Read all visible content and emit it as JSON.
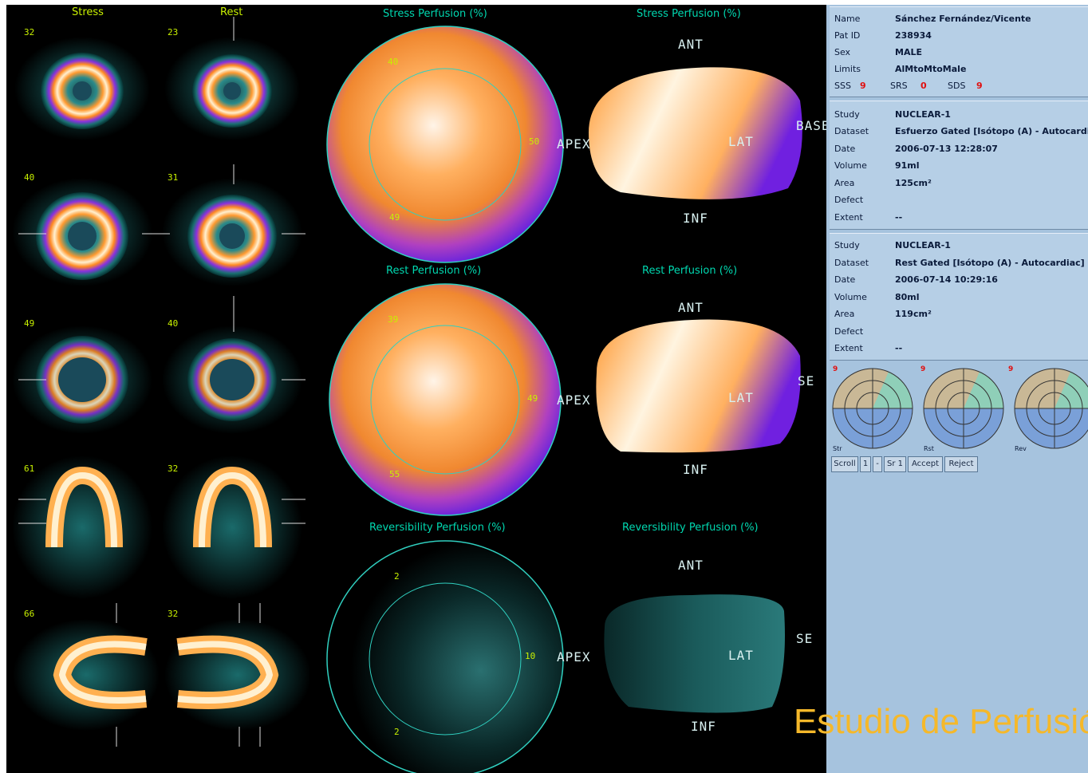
{
  "slices": {
    "stress_label": "Stress",
    "rest_label": "Rest",
    "stress_numbers": [
      "32",
      "40",
      "49",
      "61",
      "66"
    ],
    "rest_numbers": [
      "23",
      "31",
      "40",
      "32",
      "32"
    ]
  },
  "plots": {
    "stress_polar_title": "Stress Perfusion (%)",
    "stress_surface_title": "Stress Perfusion (%)",
    "rest_polar_title": "Rest Perfusion (%)",
    "rest_surface_title": "Rest Perfusion (%)",
    "rev_polar_title": "Reversibility Perfusion (%)",
    "rev_surface_title": "Reversibility Perfusion (%)",
    "stress_polar_values": [
      "40",
      "50",
      "49"
    ],
    "rest_polar_values": [
      "39",
      "49",
      "55"
    ],
    "rev_polar_values": [
      "2",
      "10",
      "2"
    ],
    "dirs": {
      "ant": "ANT",
      "inf": "INF",
      "lat": "LAT",
      "apex": "APEX",
      "se": "SE",
      "base": "BASE"
    }
  },
  "patient": {
    "name_label": "Name",
    "name_value": "Sánchez Fernández/Vicente",
    "id_label": "Pat ID",
    "id_value": "238934",
    "sex_label": "Sex",
    "sex_value": "MALE",
    "limits_label": "Limits",
    "limits_value": "AlMtoMtoMale",
    "sss_label": "SSS",
    "sss_value": "9",
    "srs_label": "SRS",
    "srs_value": "0",
    "sds_label": "SDS",
    "sds_value": "9"
  },
  "stress_study": {
    "study_label": "Study",
    "study_value": "NUCLEAR-1",
    "dataset_label": "Dataset",
    "dataset_value": "Esfuerzo Gated [Isótopo (A) - Autocardiac]",
    "date_label": "Date",
    "date_value": "2006-07-13 12:28:07",
    "volume_label": "Volume",
    "volume_value": "91ml",
    "area_label": "Area",
    "area_value": "125cm²",
    "defect_label": "Defect",
    "defect_value": "",
    "extent_label": "Extent",
    "extent_value": "--"
  },
  "rest_study": {
    "study_label": "Study",
    "study_value": "NUCLEAR-1",
    "dataset_label": "Dataset",
    "dataset_value": "Rest Gated [Isótopo (A) - Autocardiac]",
    "date_label": "Date",
    "date_value": "2006-07-14 10:29:16",
    "volume_label": "Volume",
    "volume_value": "80ml",
    "area_label": "Area",
    "area_value": "119cm²",
    "defect_label": "Defect",
    "defect_value": "",
    "extent_label": "Extent",
    "extent_value": "--"
  },
  "scores": {
    "chart1_top": "9",
    "chart2_top": "9",
    "chart3_top": "9",
    "chart1_label": "Str",
    "chart2_label": "Rst",
    "chart3_label": "Rev"
  },
  "buttons": [
    "Scroll",
    "1",
    "-",
    "Sr 1",
    "Accept",
    "Reject"
  ],
  "caption": "Estudio de Perfusión"
}
